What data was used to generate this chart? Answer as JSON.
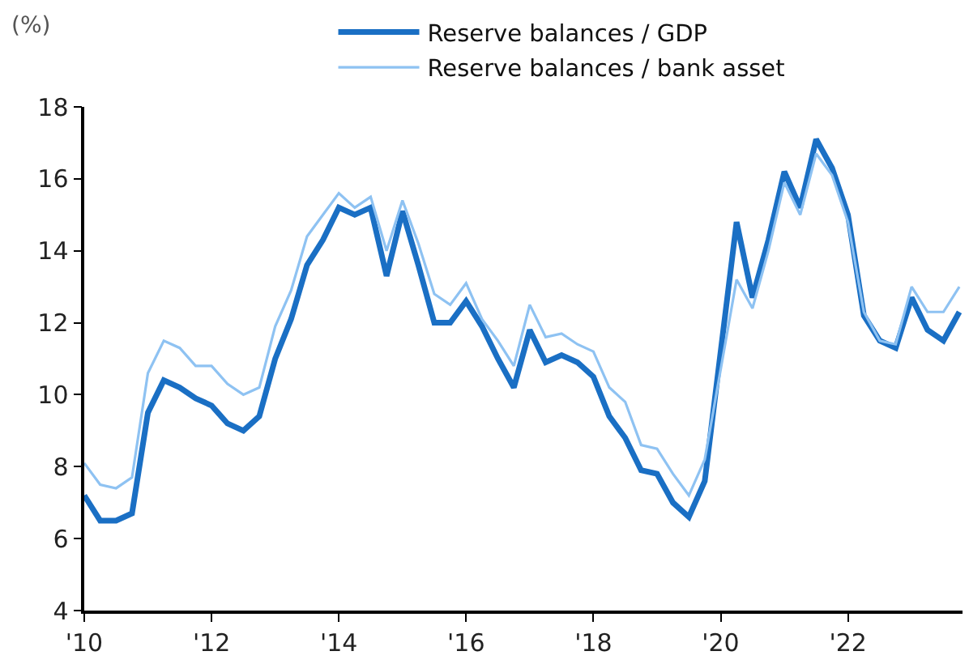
{
  "chart_data": {
    "type": "line",
    "ylabel": "(%)",
    "x": [
      2010,
      2010.25,
      2010.5,
      2010.75,
      2011,
      2011.25,
      2011.5,
      2011.75,
      2012,
      2012.25,
      2012.5,
      2012.75,
      2013,
      2013.25,
      2013.5,
      2013.75,
      2014,
      2014.25,
      2014.5,
      2014.75,
      2015,
      2015.25,
      2015.5,
      2015.75,
      2016,
      2016.25,
      2016.5,
      2016.75,
      2017,
      2017.25,
      2017.5,
      2017.75,
      2018,
      2018.25,
      2018.5,
      2018.75,
      2019,
      2019.25,
      2019.5,
      2019.75,
      2020,
      2020.25,
      2020.5,
      2020.75,
      2021,
      2021.25,
      2021.5,
      2021.75,
      2022,
      2022.25,
      2022.5,
      2022.75,
      2023,
      2023.25,
      2023.5,
      2023.75
    ],
    "series": [
      {
        "name": "Reserve balances / GDP",
        "color": "#1a6fc4",
        "values": [
          7.2,
          6.5,
          6.5,
          6.7,
          9.5,
          10.4,
          10.2,
          9.9,
          9.7,
          9.2,
          9.0,
          9.4,
          11.0,
          12.1,
          13.6,
          14.3,
          15.2,
          15.0,
          15.2,
          13.3,
          15.1,
          13.6,
          12.0,
          12.0,
          12.6,
          11.9,
          11.0,
          10.2,
          11.8,
          10.9,
          11.1,
          10.9,
          10.5,
          9.4,
          8.8,
          7.9,
          7.8,
          7.0,
          6.6,
          7.6,
          11.2,
          14.8,
          12.7,
          14.3,
          16.2,
          15.2,
          17.1,
          16.3,
          15.0,
          12.2,
          11.5,
          11.3,
          12.7,
          11.8,
          11.5,
          12.3
        ]
      },
      {
        "name": "Reserve balances / bank asset",
        "color": "#8ec2f2",
        "values": [
          8.1,
          7.5,
          7.4,
          7.7,
          10.6,
          11.5,
          11.3,
          10.8,
          10.8,
          10.3,
          10.0,
          10.2,
          11.9,
          12.9,
          14.4,
          15.0,
          15.6,
          15.2,
          15.5,
          14.0,
          15.4,
          14.2,
          12.8,
          12.5,
          13.1,
          12.1,
          11.5,
          10.8,
          12.5,
          11.6,
          11.7,
          11.4,
          11.2,
          10.2,
          9.8,
          8.6,
          8.5,
          7.8,
          7.2,
          8.2,
          10.7,
          13.2,
          12.4,
          14.0,
          15.9,
          15.0,
          16.7,
          16.1,
          14.8,
          12.3,
          11.5,
          11.4,
          13.0,
          12.3,
          12.3,
          13.0
        ]
      }
    ],
    "xlim": [
      2010,
      2023.8
    ],
    "xticks": [
      {
        "value": 2010,
        "label": "'10"
      },
      {
        "value": 2012,
        "label": "'12"
      },
      {
        "value": 2014,
        "label": "'14"
      },
      {
        "value": 2016,
        "label": "'16"
      },
      {
        "value": 2018,
        "label": "'18"
      },
      {
        "value": 2020,
        "label": "'20"
      },
      {
        "value": 2022,
        "label": "'22"
      }
    ],
    "ylim": [
      4,
      18
    ],
    "yticks": [
      4,
      6,
      8,
      10,
      12,
      14,
      16,
      18
    ],
    "grid": false,
    "legend": "top",
    "marker": "none",
    "line_style": "solid"
  }
}
